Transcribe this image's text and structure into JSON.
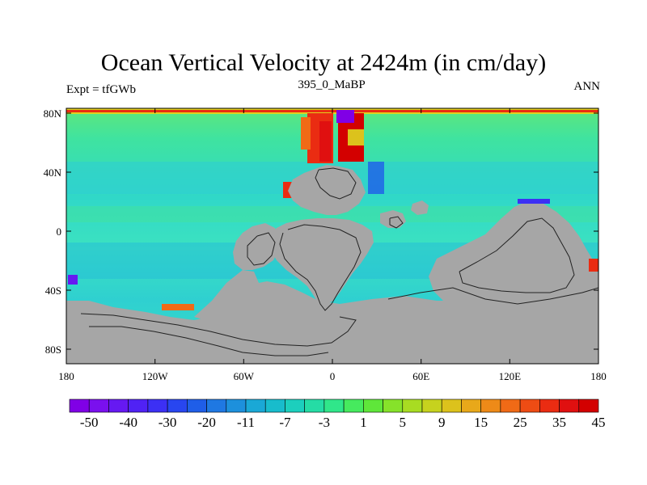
{
  "title": "Ocean Vertical Velocity at 2424m (in cm/day)",
  "subtitle_left": "Expt = tfGWb",
  "subtitle_center": "395_0_MaBP",
  "subtitle_right": "ANN",
  "map": {
    "x_ticks": [
      "180",
      "120W",
      "60W",
      "0",
      "60E",
      "120E",
      "180"
    ],
    "y_ticks": [
      "80N",
      "40N",
      "0",
      "40S",
      "80S"
    ],
    "land_color": "#a6a6a6",
    "ocean_color": "#3fe3c8"
  },
  "colorbar": {
    "colors": [
      "#8000e6",
      "#7a10ee",
      "#6619f2",
      "#5022f4",
      "#3c30f4",
      "#2846f0",
      "#1f5ee8",
      "#1f78e2",
      "#1d90dc",
      "#1aa8d6",
      "#18bccc",
      "#1ccfbd",
      "#25dca5",
      "#30e68a",
      "#46ea5e",
      "#5fe63a",
      "#86e22a",
      "#a8dc22",
      "#c6d21e",
      "#dcc21c",
      "#e8a81a",
      "#ee8a18",
      "#f06a16",
      "#ee4c14",
      "#ea2c12",
      "#e01010",
      "#d30000"
    ],
    "labels": [
      "-50",
      "-40",
      "-30",
      "-20",
      "-11",
      "-7",
      "-3",
      "1",
      "5",
      "9",
      "15",
      "25",
      "35",
      "45"
    ]
  }
}
